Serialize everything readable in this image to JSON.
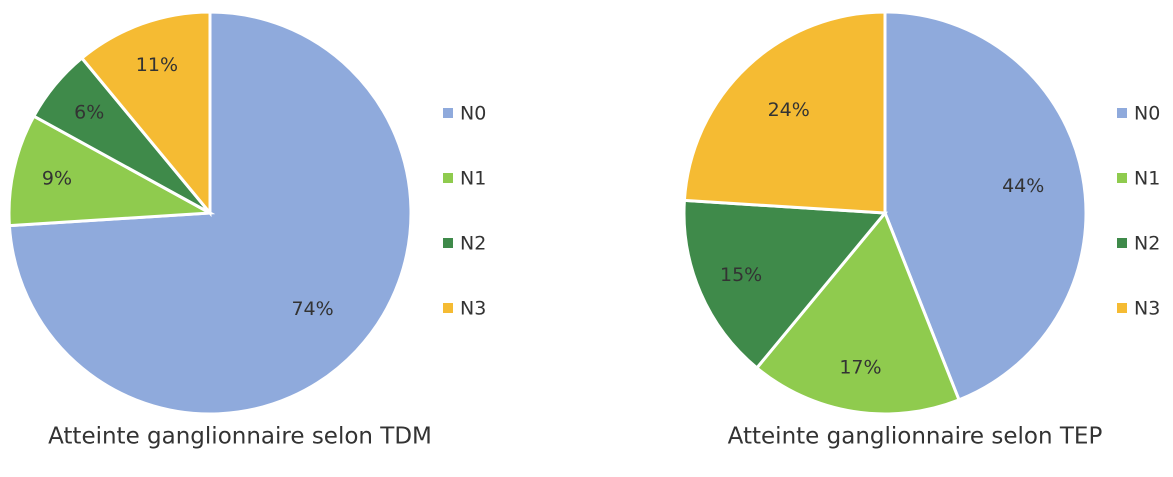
{
  "chart_data": [
    {
      "type": "pie",
      "title": "Atteinte ganglionnaire selon TDM",
      "categories": [
        "N0",
        "N1",
        "N2",
        "N3"
      ],
      "values": [
        74,
        9,
        6,
        11
      ],
      "value_labels": [
        "74%",
        "9%",
        "6%",
        "11%"
      ],
      "colors": [
        "#8faadc",
        "#8fcb4e",
        "#3f8a4a",
        "#f5bb33"
      ],
      "legend": "right"
    },
    {
      "type": "pie",
      "title": "Atteinte ganglionnaire selon TEP",
      "categories": [
        "N0",
        "N1",
        "N2",
        "N3"
      ],
      "values": [
        44,
        17,
        15,
        24
      ],
      "value_labels": [
        "44%",
        "17%",
        "15%",
        "24%"
      ],
      "colors": [
        "#8faadc",
        "#8fcb4e",
        "#3f8a4a",
        "#f5bb33"
      ],
      "legend": "right"
    }
  ]
}
